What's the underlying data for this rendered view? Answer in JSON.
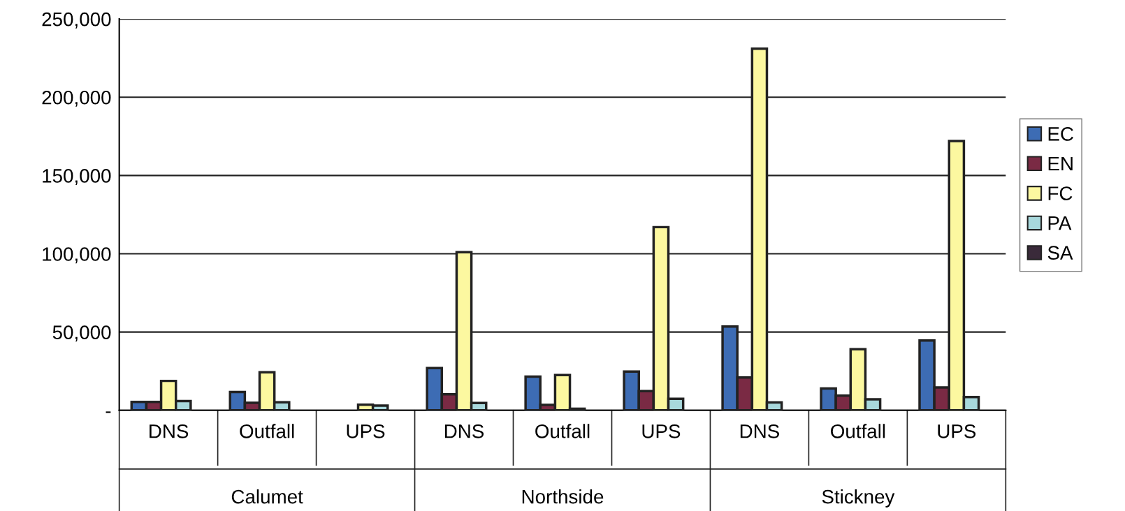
{
  "chart_data": {
    "type": "bar",
    "categories": [
      "DNS",
      "Outfall",
      "UPS",
      "DNS",
      "Outfall",
      "UPS",
      "DNS",
      "Outfall",
      "UPS"
    ],
    "annotations": [
      "Calumet",
      "Northside",
      "Stickney"
    ],
    "series": [
      {
        "name": "EC",
        "color": "#3d6cb4",
        "values": [
          5400,
          11700,
          null,
          27000,
          21500,
          24800,
          53500,
          14000,
          44600
        ]
      },
      {
        "name": "EN",
        "color": "#7a2a44",
        "values": [
          5400,
          4800,
          null,
          10300,
          3500,
          12300,
          21000,
          9400,
          14600
        ]
      },
      {
        "name": "FC",
        "color": "#fcf8a0",
        "values": [
          18800,
          24300,
          3600,
          101000,
          22500,
          117000,
          231000,
          39000,
          172000
        ]
      },
      {
        "name": "PA",
        "color": "#a8d8dc",
        "values": [
          5900,
          5100,
          3000,
          4700,
          1000,
          7400,
          5000,
          7000,
          8500
        ]
      },
      {
        "name": "SA",
        "color": "#3a2a3a",
        "values": [
          null,
          null,
          null,
          null,
          null,
          null,
          null,
          null,
          null
        ]
      }
    ],
    "ylim": [
      0,
      250000
    ],
    "yticks": [
      {
        "value": 0,
        "label": "-"
      },
      {
        "value": 50000,
        "label": "50,000"
      },
      {
        "value": 100000,
        "label": "100,000"
      },
      {
        "value": 150000,
        "label": "150,000"
      },
      {
        "value": 200000,
        "label": "200,000"
      },
      {
        "value": 250000,
        "label": "250,000"
      }
    ],
    "grid": "y",
    "legend": "right"
  }
}
